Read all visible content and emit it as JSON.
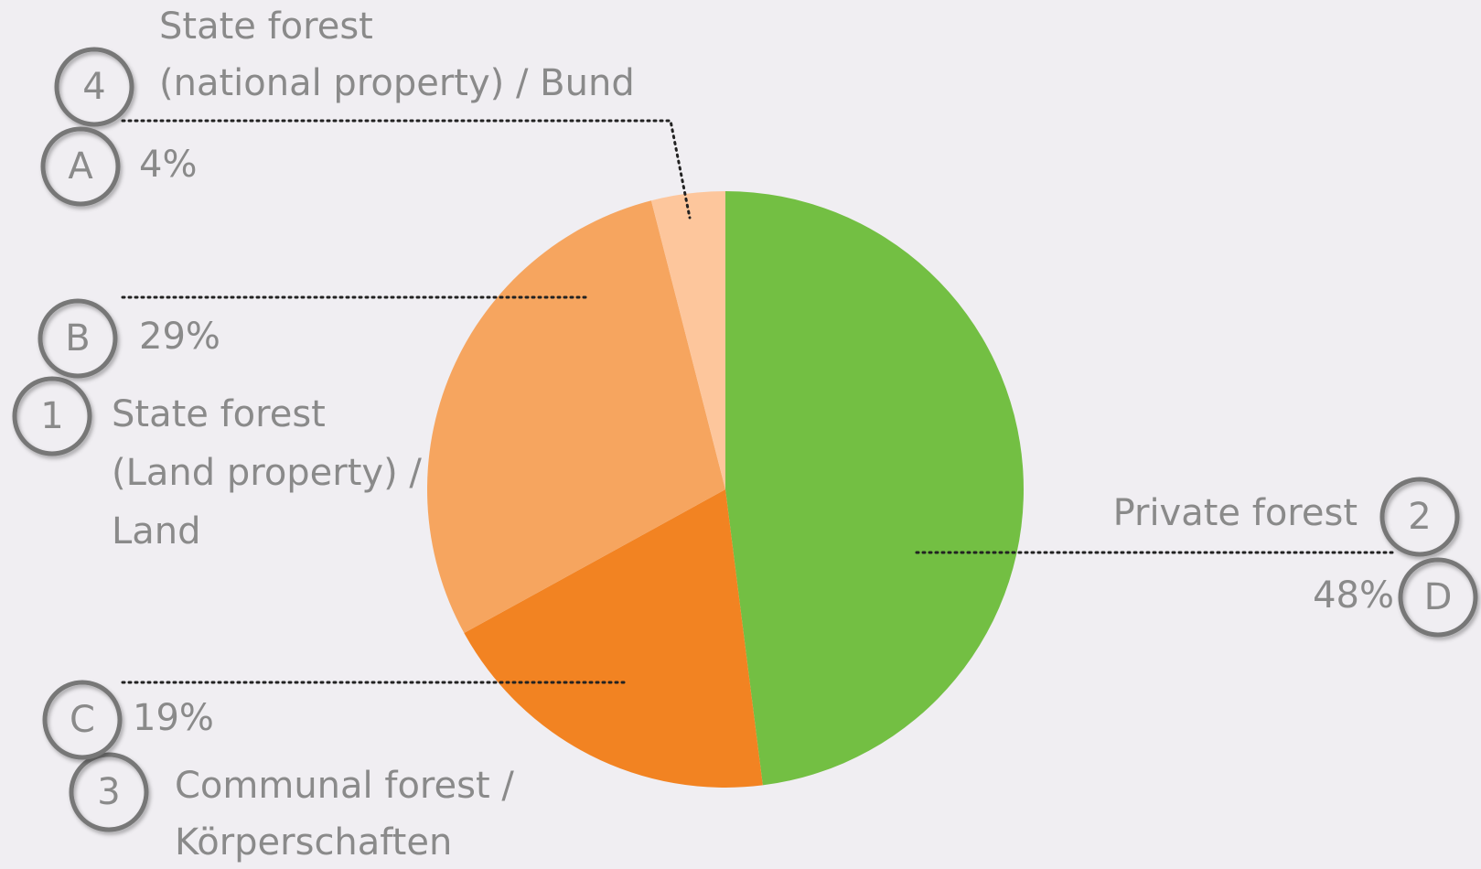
{
  "chart_data": {
    "type": "pie",
    "categories": [
      [
        "Private forest"
      ],
      [
        "Communal forest /",
        "Körperschaften"
      ],
      [
        "State forest",
        "(Land property) /",
        "Land"
      ],
      [
        "State forest",
        "(national property) / Bund"
      ]
    ],
    "values": [
      48,
      19,
      29,
      4
    ],
    "value_labels": [
      "48%",
      "19%",
      "29%",
      "4%"
    ],
    "numbers": [
      "2",
      "3",
      "1",
      "4"
    ],
    "letters": [
      "D",
      "C",
      "B",
      "A"
    ],
    "colors": [
      "#73bf43",
      "#f28322",
      "#f6a55f",
      "#fdc69c"
    ]
  }
}
